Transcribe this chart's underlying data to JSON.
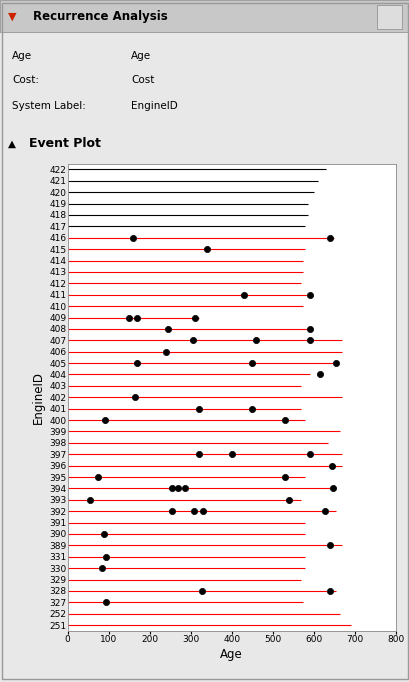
{
  "title_panel": "Recurrence Analysis",
  "xlabel": "Age",
  "ylabel": "EngineID",
  "xlim": [
    0,
    800
  ],
  "xticks": [
    0,
    100,
    200,
    300,
    400,
    500,
    600,
    700,
    800
  ],
  "engine_ids": [
    422,
    421,
    420,
    419,
    418,
    417,
    416,
    415,
    414,
    413,
    412,
    411,
    410,
    409,
    408,
    407,
    406,
    405,
    404,
    403,
    402,
    401,
    400,
    399,
    398,
    397,
    396,
    395,
    394,
    393,
    392,
    391,
    390,
    389,
    331,
    330,
    329,
    328,
    327,
    252,
    251
  ],
  "line_ends": {
    "422": 630,
    "421": 610,
    "420": 600,
    "419": 585,
    "418": 585,
    "417": 580,
    "416": 650,
    "415": 580,
    "414": 575,
    "413": 575,
    "412": 570,
    "411": 590,
    "410": 575,
    "409": 320,
    "408": 590,
    "407": 670,
    "406": 670,
    "405": 660,
    "404": 590,
    "403": 570,
    "402": 670,
    "401": 570,
    "400": 580,
    "399": 665,
    "398": 635,
    "397": 670,
    "396": 670,
    "395": 580,
    "394": 655,
    "393": 570,
    "392": 655,
    "391": 580,
    "390": 580,
    "389": 670,
    "331": 580,
    "330": 580,
    "329": 570,
    "328": 655,
    "327": 575,
    "252": 665,
    "251": 690
  },
  "red_lines": [
    416,
    415,
    414,
    413,
    412,
    411,
    410,
    409,
    408,
    407,
    406,
    405,
    404,
    403,
    402,
    401,
    400,
    399,
    398,
    397,
    396,
    395,
    394,
    393,
    392,
    391,
    390,
    389,
    331,
    330,
    329,
    328,
    327,
    252,
    251
  ],
  "black_lines": [
    422,
    421,
    420,
    419,
    418,
    417
  ],
  "events": {
    "416": [
      160,
      640
    ],
    "415": [
      340
    ],
    "411": [
      430,
      590
    ],
    "409": [
      150,
      170,
      310
    ],
    "408": [
      245,
      590
    ],
    "407": [
      305,
      460,
      590
    ],
    "406": [
      240
    ],
    "405": [
      170,
      450,
      655
    ],
    "404": [
      615
    ],
    "402": [
      165
    ],
    "401": [
      320,
      450
    ],
    "400": [
      90,
      530
    ],
    "397": [
      320,
      400,
      590
    ],
    "396": [
      645
    ],
    "395": [
      75,
      530
    ],
    "394": [
      255,
      270,
      285,
      648
    ],
    "393": [
      55,
      540
    ],
    "392": [
      255,
      308,
      330,
      628
    ],
    "390": [
      88
    ],
    "389": [
      640
    ],
    "331": [
      93
    ],
    "330": [
      83
    ],
    "328": [
      328,
      640
    ],
    "327": [
      93
    ]
  },
  "line_color_red": "#FF0000",
  "line_color_black": "#000000",
  "dot_color": "#000000",
  "panel_bg": "#e8e8e8",
  "header_bg": "#ffffff",
  "plot_bg": "#ffffff"
}
